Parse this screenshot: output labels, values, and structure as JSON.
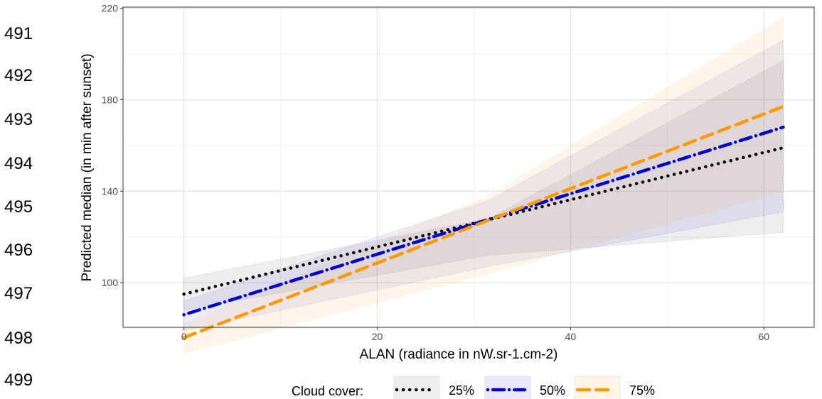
{
  "line_numbers": [
    "491",
    "492",
    "493",
    "494",
    "495",
    "496",
    "497",
    "498",
    "499"
  ],
  "chart_data": {
    "type": "line",
    "title": "",
    "xlabel": "ALAN (radiance in nW.sr-1.cm-2)",
    "ylabel": "Predicted median (in min after sunset)",
    "xlim": [
      -6.3,
      65.2
    ],
    "ylim": [
      80.5,
      220.5
    ],
    "xticks": [
      0,
      20,
      40,
      60
    ],
    "yticks": [
      100,
      140,
      180,
      220
    ],
    "grid": true,
    "legend": {
      "title": "Cloud cover:",
      "position": "bottom"
    },
    "series": [
      {
        "name": "25%",
        "color": "#000000",
        "dash": "dotted",
        "x": [
          0,
          62
        ],
        "y": [
          95,
          159
        ],
        "ribbon": {
          "x": [
            0,
            31.5,
            62
          ],
          "lower": [
            88,
            112,
            122
          ],
          "upper": [
            102,
            128,
            197
          ]
        }
      },
      {
        "name": "50%",
        "color": "#0000cc",
        "dash": "dotdash",
        "x": [
          0,
          62
        ],
        "y": [
          86,
          168
        ],
        "ribbon": {
          "x": [
            0,
            31.5,
            62
          ],
          "lower": [
            79,
            107,
            131
          ],
          "upper": [
            92,
            136,
            206
          ]
        }
      },
      {
        "name": "75%",
        "color": "#ff9900",
        "dash": "dashed",
        "x": [
          0,
          62
        ],
        "y": [
          76,
          177
        ],
        "ribbon": {
          "x": [
            0,
            31.5,
            62
          ],
          "lower": [
            69,
            104,
            140
          ],
          "upper": [
            82,
            138,
            216
          ]
        }
      }
    ]
  }
}
